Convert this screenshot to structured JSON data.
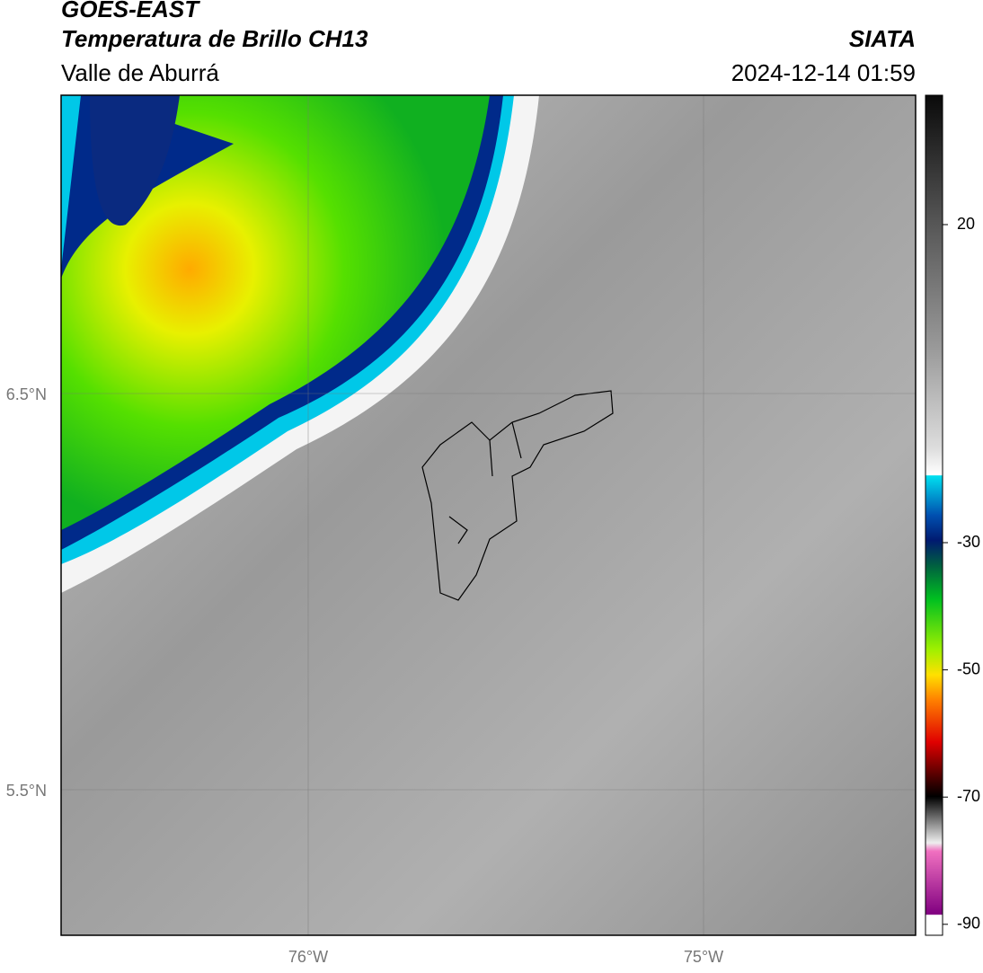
{
  "header": {
    "title": "GOES-EAST",
    "subtitle": "Temperatura de Brillo CH13",
    "region": "Valle de Aburrá",
    "source": "SIATA",
    "timestamp": "2024-12-14 01:59"
  },
  "map": {
    "lat_labels": [
      "6.5°N",
      "5.5°N"
    ],
    "lon_labels": [
      "76°W",
      "75°W"
    ]
  },
  "colorbar": {
    "ticks": [
      20,
      -30,
      -50,
      -70,
      -90
    ]
  }
}
